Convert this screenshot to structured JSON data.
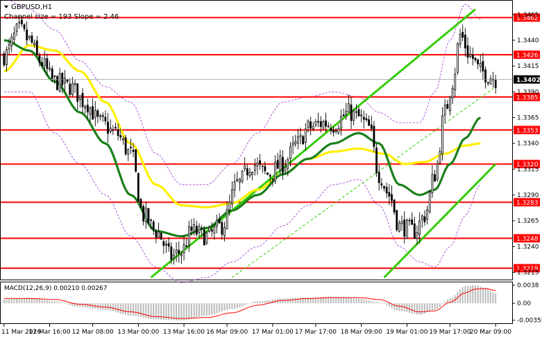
{
  "header": {
    "symbol": "GBPUSD,H1",
    "subtitle": "Channel size = 193 Slope = 2.46"
  },
  "macd": {
    "label": "MACD(12,26,9) 0.00210 0.00267"
  },
  "colors": {
    "background": "#ffffff",
    "bull": "#000000",
    "bear": "#000000",
    "level_line": "#ff0000",
    "level_label_bg": "#ff0000",
    "ma_fast": "#1a7f1a",
    "ma_slow": "#ffee00",
    "channel": "#33cc00",
    "bands": "#9933cc",
    "macd_hist": "#bbbbbb",
    "macd_signal": "#ff0000",
    "current_bg": "#000000"
  },
  "chart_data": {
    "type": "candlestick",
    "symbol": "GBPUSD",
    "timeframe": "H1",
    "ylim": [
      1.321,
      1.3475
    ],
    "price_ticks": [
      "1.3465",
      "1.3440",
      "1.3415",
      "1.3390",
      "1.3365",
      "1.3340",
      "1.3315",
      "1.3290",
      "1.3265",
      "1.3240",
      "1.3215"
    ],
    "levels": [
      "1.3462",
      "1.3426",
      "1.3385",
      "1.3353",
      "1.3320",
      "1.3283",
      "1.3248",
      "1.3219"
    ],
    "current_price": "1.3402",
    "x_labels": [
      "11 Mar 2026",
      "11 Mar 16:00",
      "12 Mar 08:00",
      "13 Mar 00:00",
      "13 Mar 16:00",
      "16 Mar 09:00",
      "17 Mar 01:00",
      "17 Mar 17:00",
      "18 Mar 09:00",
      "19 Mar 01:00",
      "19 Mar 17:00",
      "20 Mar 09:00"
    ],
    "macd_ticks": [
      "0.0038",
      "0.00",
      "-0.00355"
    ],
    "macd_ylim": [
      -0.0042,
      0.0044
    ],
    "price_anchors": [
      [
        0,
        1.3425
      ],
      [
        6,
        1.345
      ],
      [
        10,
        1.344
      ],
      [
        14,
        1.342
      ],
      [
        20,
        1.34
      ],
      [
        26,
        1.3395
      ],
      [
        32,
        1.338
      ],
      [
        38,
        1.336
      ],
      [
        44,
        1.335
      ],
      [
        50,
        1.333
      ],
      [
        55,
        1.327
      ],
      [
        60,
        1.3255
      ],
      [
        66,
        1.323
      ],
      [
        70,
        1.3235
      ],
      [
        74,
        1.3255
      ],
      [
        80,
        1.325
      ],
      [
        86,
        1.326
      ],
      [
        92,
        1.33
      ],
      [
        98,
        1.332
      ],
      [
        104,
        1.331
      ],
      [
        110,
        1.332
      ],
      [
        116,
        1.334
      ],
      [
        120,
        1.3355
      ],
      [
        126,
        1.336
      ],
      [
        130,
        1.3358
      ],
      [
        136,
        1.337
      ],
      [
        140,
        1.3365
      ],
      [
        144,
        1.3355
      ],
      [
        148,
        1.331
      ],
      [
        152,
        1.329
      ],
      [
        156,
        1.326
      ],
      [
        162,
        1.3255
      ],
      [
        166,
        1.327
      ],
      [
        170,
        1.331
      ],
      [
        174,
        1.337
      ],
      [
        177,
        1.34
      ],
      [
        180,
        1.3445
      ],
      [
        184,
        1.3425
      ],
      [
        188,
        1.341
      ],
      [
        192,
        1.3405
      ],
      [
        194,
        1.3402
      ]
    ],
    "ma_fast_anchors": [
      [
        0,
        1.344
      ],
      [
        10,
        1.343
      ],
      [
        20,
        1.34
      ],
      [
        30,
        1.337
      ],
      [
        40,
        1.334
      ],
      [
        50,
        1.329
      ],
      [
        60,
        1.3255
      ],
      [
        70,
        1.325
      ],
      [
        80,
        1.3258
      ],
      [
        90,
        1.3275
      ],
      [
        100,
        1.329
      ],
      [
        110,
        1.331
      ],
      [
        120,
        1.3325
      ],
      [
        130,
        1.334
      ],
      [
        140,
        1.335
      ],
      [
        148,
        1.334
      ],
      [
        156,
        1.33
      ],
      [
        164,
        1.329
      ],
      [
        170,
        1.3295
      ],
      [
        176,
        1.332
      ],
      [
        182,
        1.3345
      ],
      [
        188,
        1.3365
      ]
    ],
    "ma_slow_anchors": [
      [
        0,
        1.341
      ],
      [
        10,
        1.3435
      ],
      [
        20,
        1.343
      ],
      [
        30,
        1.341
      ],
      [
        40,
        1.338
      ],
      [
        50,
        1.334
      ],
      [
        60,
        1.33
      ],
      [
        70,
        1.328
      ],
      [
        80,
        1.3278
      ],
      [
        90,
        1.3282
      ],
      [
        100,
        1.3295
      ],
      [
        110,
        1.331
      ],
      [
        120,
        1.3325
      ],
      [
        130,
        1.3332
      ],
      [
        140,
        1.3335
      ],
      [
        150,
        1.333
      ],
      [
        158,
        1.332
      ],
      [
        166,
        1.3322
      ],
      [
        174,
        1.333
      ],
      [
        182,
        1.3338
      ],
      [
        188,
        1.334
      ]
    ],
    "bands_upper_anchors": [
      [
        0,
        1.348
      ],
      [
        10,
        1.347
      ],
      [
        20,
        1.345
      ],
      [
        30,
        1.342
      ],
      [
        40,
        1.3395
      ],
      [
        50,
        1.338
      ],
      [
        60,
        1.333
      ],
      [
        70,
        1.33
      ],
      [
        80,
        1.33
      ],
      [
        90,
        1.332
      ],
      [
        100,
        1.335
      ],
      [
        110,
        1.338
      ],
      [
        120,
        1.3385
      ],
      [
        130,
        1.339
      ],
      [
        140,
        1.3385
      ],
      [
        148,
        1.337
      ],
      [
        156,
        1.336
      ],
      [
        164,
        1.336
      ],
      [
        170,
        1.339
      ],
      [
        176,
        1.344
      ],
      [
        182,
        1.3475
      ],
      [
        188,
        1.346
      ]
    ],
    "bands_lower_anchors": [
      [
        0,
        1.339
      ],
      [
        10,
        1.339
      ],
      [
        20,
        1.335
      ],
      [
        30,
        1.332
      ],
      [
        40,
        1.329
      ],
      [
        50,
        1.325
      ],
      [
        60,
        1.322
      ],
      [
        70,
        1.3205
      ],
      [
        80,
        1.321
      ],
      [
        90,
        1.3225
      ],
      [
        100,
        1.324
      ],
      [
        110,
        1.326
      ],
      [
        120,
        1.328
      ],
      [
        130,
        1.33
      ],
      [
        140,
        1.3305
      ],
      [
        148,
        1.328
      ],
      [
        156,
        1.324
      ],
      [
        164,
        1.3225
      ],
      [
        170,
        1.322
      ],
      [
        176,
        1.324
      ],
      [
        182,
        1.327
      ],
      [
        188,
        1.33
      ]
    ],
    "channel_lines": [
      {
        "from": [
          58,
          1.321
        ],
        "to": [
          186,
          1.347
        ]
      },
      {
        "from": [
          150,
          1.321
        ],
        "to": [
          194,
          1.332
        ]
      },
      {
        "from": [
          90,
          1.321
        ],
        "to": [
          194,
          1.3395
        ],
        "dashed": true
      }
    ],
    "macd_hist_anchors": [
      [
        0,
        0.0008
      ],
      [
        10,
        0.0012
      ],
      [
        20,
        0.0004
      ],
      [
        30,
        -0.0008
      ],
      [
        40,
        -0.0014
      ],
      [
        50,
        -0.0026
      ],
      [
        60,
        -0.0034
      ],
      [
        70,
        -0.0036
      ],
      [
        80,
        -0.0026
      ],
      [
        90,
        -0.0012
      ],
      [
        100,
        0.0004
      ],
      [
        110,
        0.001
      ],
      [
        120,
        0.0012
      ],
      [
        130,
        0.0014
      ],
      [
        140,
        0.001
      ],
      [
        148,
        0.0002
      ],
      [
        156,
        -0.0016
      ],
      [
        164,
        -0.0024
      ],
      [
        170,
        -0.0014
      ],
      [
        176,
        0.001
      ],
      [
        182,
        0.0036
      ],
      [
        186,
        0.0038
      ],
      [
        190,
        0.0032
      ],
      [
        194,
        0.0021
      ]
    ],
    "macd_signal_anchors": [
      [
        0,
        0.001
      ],
      [
        10,
        0.001
      ],
      [
        20,
        0.0008
      ],
      [
        30,
        -0.0002
      ],
      [
        40,
        -0.0008
      ],
      [
        50,
        -0.0018
      ],
      [
        60,
        -0.0028
      ],
      [
        70,
        -0.0032
      ],
      [
        80,
        -0.003
      ],
      [
        90,
        -0.002
      ],
      [
        100,
        -0.0004
      ],
      [
        110,
        0.0006
      ],
      [
        120,
        0.001
      ],
      [
        130,
        0.0012
      ],
      [
        140,
        0.0012
      ],
      [
        148,
        0.0008
      ],
      [
        156,
        -0.0006
      ],
      [
        164,
        -0.0018
      ],
      [
        170,
        -0.0016
      ],
      [
        176,
        0.0002
      ],
      [
        182,
        0.0022
      ],
      [
        186,
        0.003
      ],
      [
        190,
        0.0031
      ],
      [
        194,
        0.00267
      ]
    ]
  }
}
